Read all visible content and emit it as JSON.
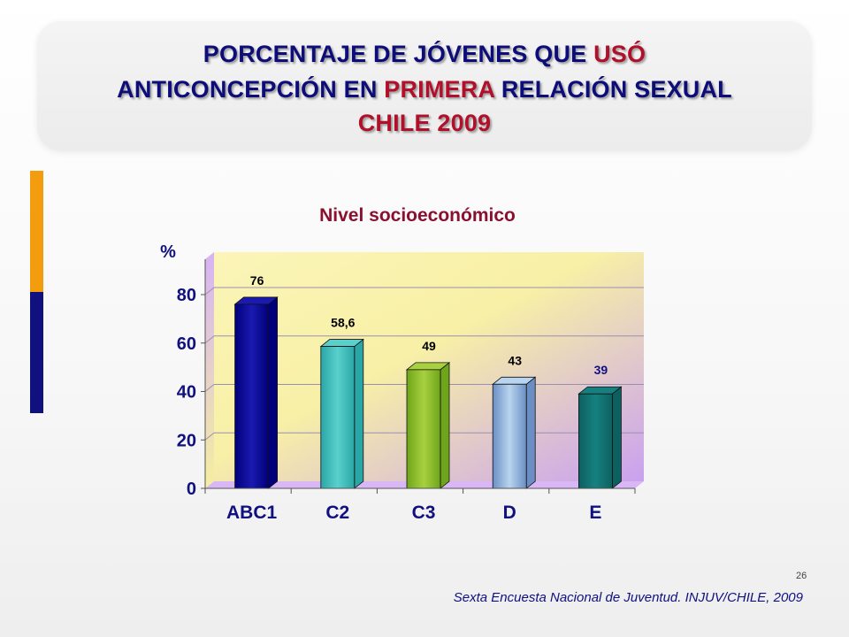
{
  "title": {
    "line1": [
      "PORCENTAJE DE JÓVENES QUE ",
      "USÓ"
    ],
    "line2": [
      "ANTICONCEPCIÓN EN ",
      "PRIMERA",
      " RELACIÓN SEXUAL"
    ],
    "line3": "CHILE 2009"
  },
  "colors": {
    "title_blue": "#0d0d7a",
    "title_red": "#b0102a",
    "accent_orange": "#f39c0e",
    "accent_blue": "#10107f"
  },
  "chart_data": {
    "type": "bar",
    "title": "Nivel socioeconómico",
    "ylabel": "%",
    "xlabel": "",
    "categories": [
      "ABC1",
      "C2",
      "C3",
      "D",
      "E"
    ],
    "values": [
      76,
      58.6,
      49,
      43,
      39
    ],
    "value_labels": [
      "76",
      "58,6",
      "49",
      "43",
      "39"
    ],
    "ylim": [
      0,
      80
    ],
    "yticks": [
      "0",
      "20",
      "40",
      "60",
      "80"
    ],
    "ytick_values": [
      0,
      20,
      40,
      60,
      80
    ],
    "grid": true,
    "bar_colors": [
      [
        "#00007a",
        "#1a1ab0"
      ],
      [
        "#2aa6a6",
        "#5ad0cc"
      ],
      [
        "#6ea51a",
        "#a8d040"
      ],
      [
        "#6b8fc4",
        "#b8d4ee"
      ],
      [
        "#0d6060",
        "#168080"
      ]
    ],
    "label_colors": [
      "#000000",
      "#000000",
      "#000000",
      "#000000",
      "#10107f"
    ]
  },
  "page_number": "26",
  "source": "Sexta Encuesta Nacional de Juventud. INJUV/CHILE, 2009"
}
